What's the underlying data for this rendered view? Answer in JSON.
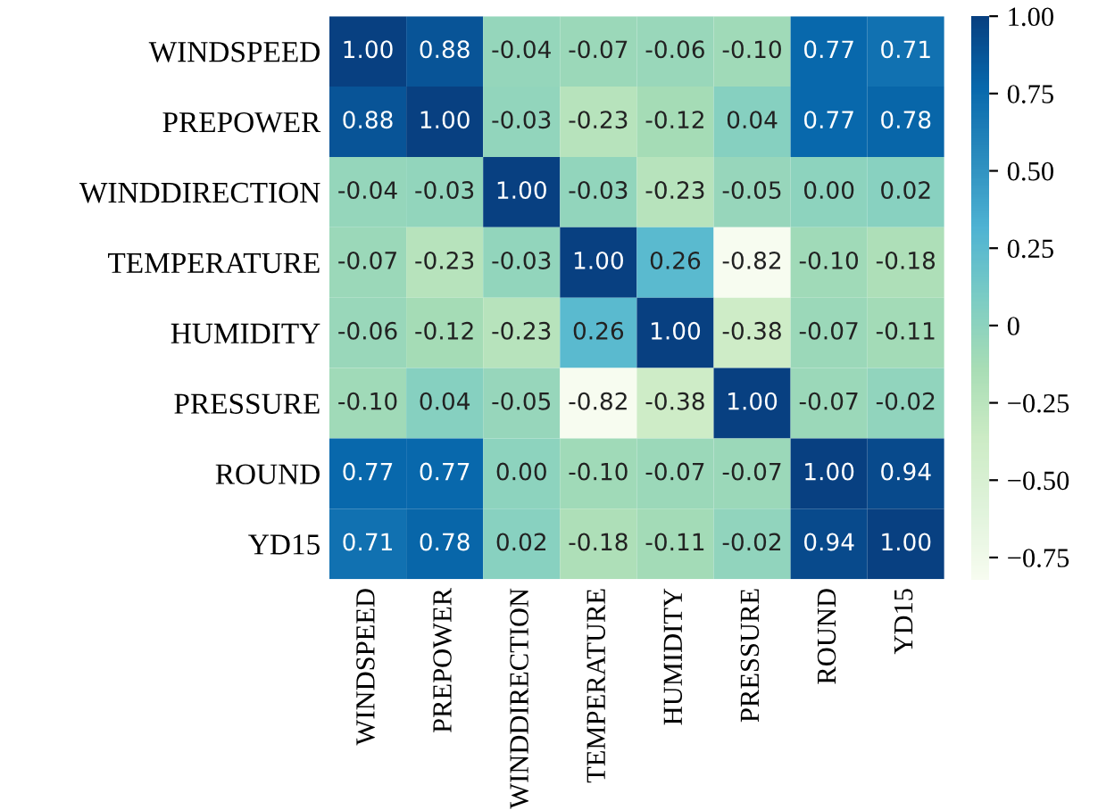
{
  "chart_data": {
    "type": "heatmap",
    "categories": [
      "WINDSPEED",
      "PREPOWER",
      "WINDDIRECTION",
      "TEMPERATURE",
      "HUMIDITY",
      "PRESSURE",
      "ROUND",
      "YD15"
    ],
    "y_categories": [
      "WINDSPEED",
      "PREPOWER",
      "WINDDIRECTION",
      "TEMPERATURE",
      "HUMIDITY",
      "PRESSURE",
      "ROUND",
      "YD15"
    ],
    "cells": [
      [
        1.0,
        0.88,
        -0.04,
        -0.07,
        -0.06,
        -0.1,
        0.77,
        0.71
      ],
      [
        0.88,
        1.0,
        -0.03,
        -0.23,
        -0.12,
        0.04,
        0.77,
        0.78
      ],
      [
        -0.04,
        -0.03,
        1.0,
        -0.03,
        -0.23,
        -0.05,
        0.0,
        0.02
      ],
      [
        -0.07,
        -0.23,
        -0.03,
        1.0,
        0.26,
        -0.82,
        -0.1,
        -0.18
      ],
      [
        -0.06,
        -0.12,
        -0.23,
        0.26,
        1.0,
        -0.38,
        -0.07,
        -0.11
      ],
      [
        -0.1,
        0.04,
        -0.05,
        -0.82,
        -0.38,
        1.0,
        -0.07,
        -0.02
      ],
      [
        0.77,
        0.77,
        0.0,
        -0.1,
        -0.07,
        -0.07,
        1.0,
        0.94
      ],
      [
        0.71,
        0.78,
        0.02,
        -0.18,
        -0.11,
        -0.02,
        0.94,
        1.0
      ]
    ],
    "data_labels": true,
    "cell_labels": [
      [
        "1.00",
        "0.88",
        "-0.04",
        "-0.07",
        "-0.06",
        "-0.10",
        "0.77",
        "0.71"
      ],
      [
        "0.88",
        "1.00",
        "-0.03",
        "-0.23",
        "-0.12",
        "0.04",
        "0.77",
        "0.78"
      ],
      [
        "-0.04",
        "-0.03",
        "1.00",
        "-0.03",
        "-0.23",
        "-0.05",
        "0.00",
        "0.02"
      ],
      [
        "-0.07",
        "-0.23",
        "-0.03",
        "1.00",
        "0.26",
        "-0.82",
        "-0.10",
        "-0.18"
      ],
      [
        "-0.06",
        "-0.12",
        "-0.23",
        "0.26",
        "1.00",
        "-0.38",
        "-0.07",
        "-0.11"
      ],
      [
        "-0.10",
        "0.04",
        "-0.05",
        "-0.82",
        "-0.38",
        "1.00",
        "-0.07",
        "-0.02"
      ],
      [
        "0.77",
        "0.77",
        "0.00",
        "-0.10",
        "-0.07",
        "-0.07",
        "1.00",
        "0.94"
      ],
      [
        "0.71",
        "0.78",
        "0.02",
        "-0.18",
        "-0.11",
        "-0.02",
        "0.94",
        "1.00"
      ]
    ],
    "clim": [
      -0.82,
      1.0
    ],
    "cticks": [
      {
        "value": 1,
        "label": "1.00"
      },
      {
        "value": 0.75,
        "label": "0.75"
      },
      {
        "value": 0.5,
        "label": "0.50"
      },
      {
        "value": 0.25,
        "label": "0.25"
      },
      0,
      {
        "value": -0.25,
        "label": "−0.25"
      },
      {
        "value": -0.5,
        "label": "−0.50"
      },
      {
        "value": -0.75,
        "label": "−0.75"
      }
    ]
  }
}
